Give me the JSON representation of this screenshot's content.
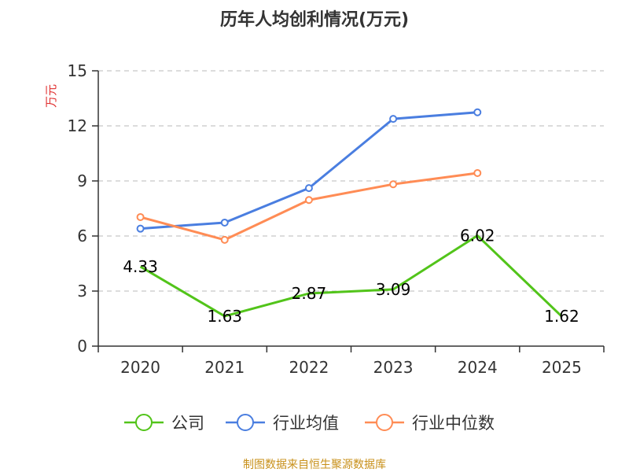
{
  "chart_data": {
    "type": "line",
    "title": "历年人均创利情况(万元)",
    "ylabel": "万元",
    "xlabel": "",
    "categories": [
      "2020",
      "2021",
      "2022",
      "2023",
      "2024",
      "2025"
    ],
    "ylim": [
      0,
      15
    ],
    "yticks": [
      "0",
      "3",
      "6",
      "9",
      "12",
      "15"
    ],
    "grid": true,
    "legend_position": "bottom",
    "series": [
      {
        "name": "公司",
        "color": "#52c41a",
        "values": [
          4.33,
          1.63,
          2.87,
          3.09,
          6.02,
          1.62
        ],
        "labels": [
          "4.33",
          "1.63",
          "2.87",
          "3.09",
          "6.02",
          "1.62"
        ]
      },
      {
        "name": "行业均值",
        "color": "#4a7ee0",
        "values": [
          6.4,
          6.73,
          8.61,
          12.38,
          12.74,
          null
        ]
      },
      {
        "name": "行业中位数",
        "color": "#ff8c55",
        "values": [
          7.03,
          5.79,
          7.96,
          8.82,
          9.43,
          null
        ]
      }
    ],
    "source": "制图数据来自恒生聚源数据库"
  }
}
